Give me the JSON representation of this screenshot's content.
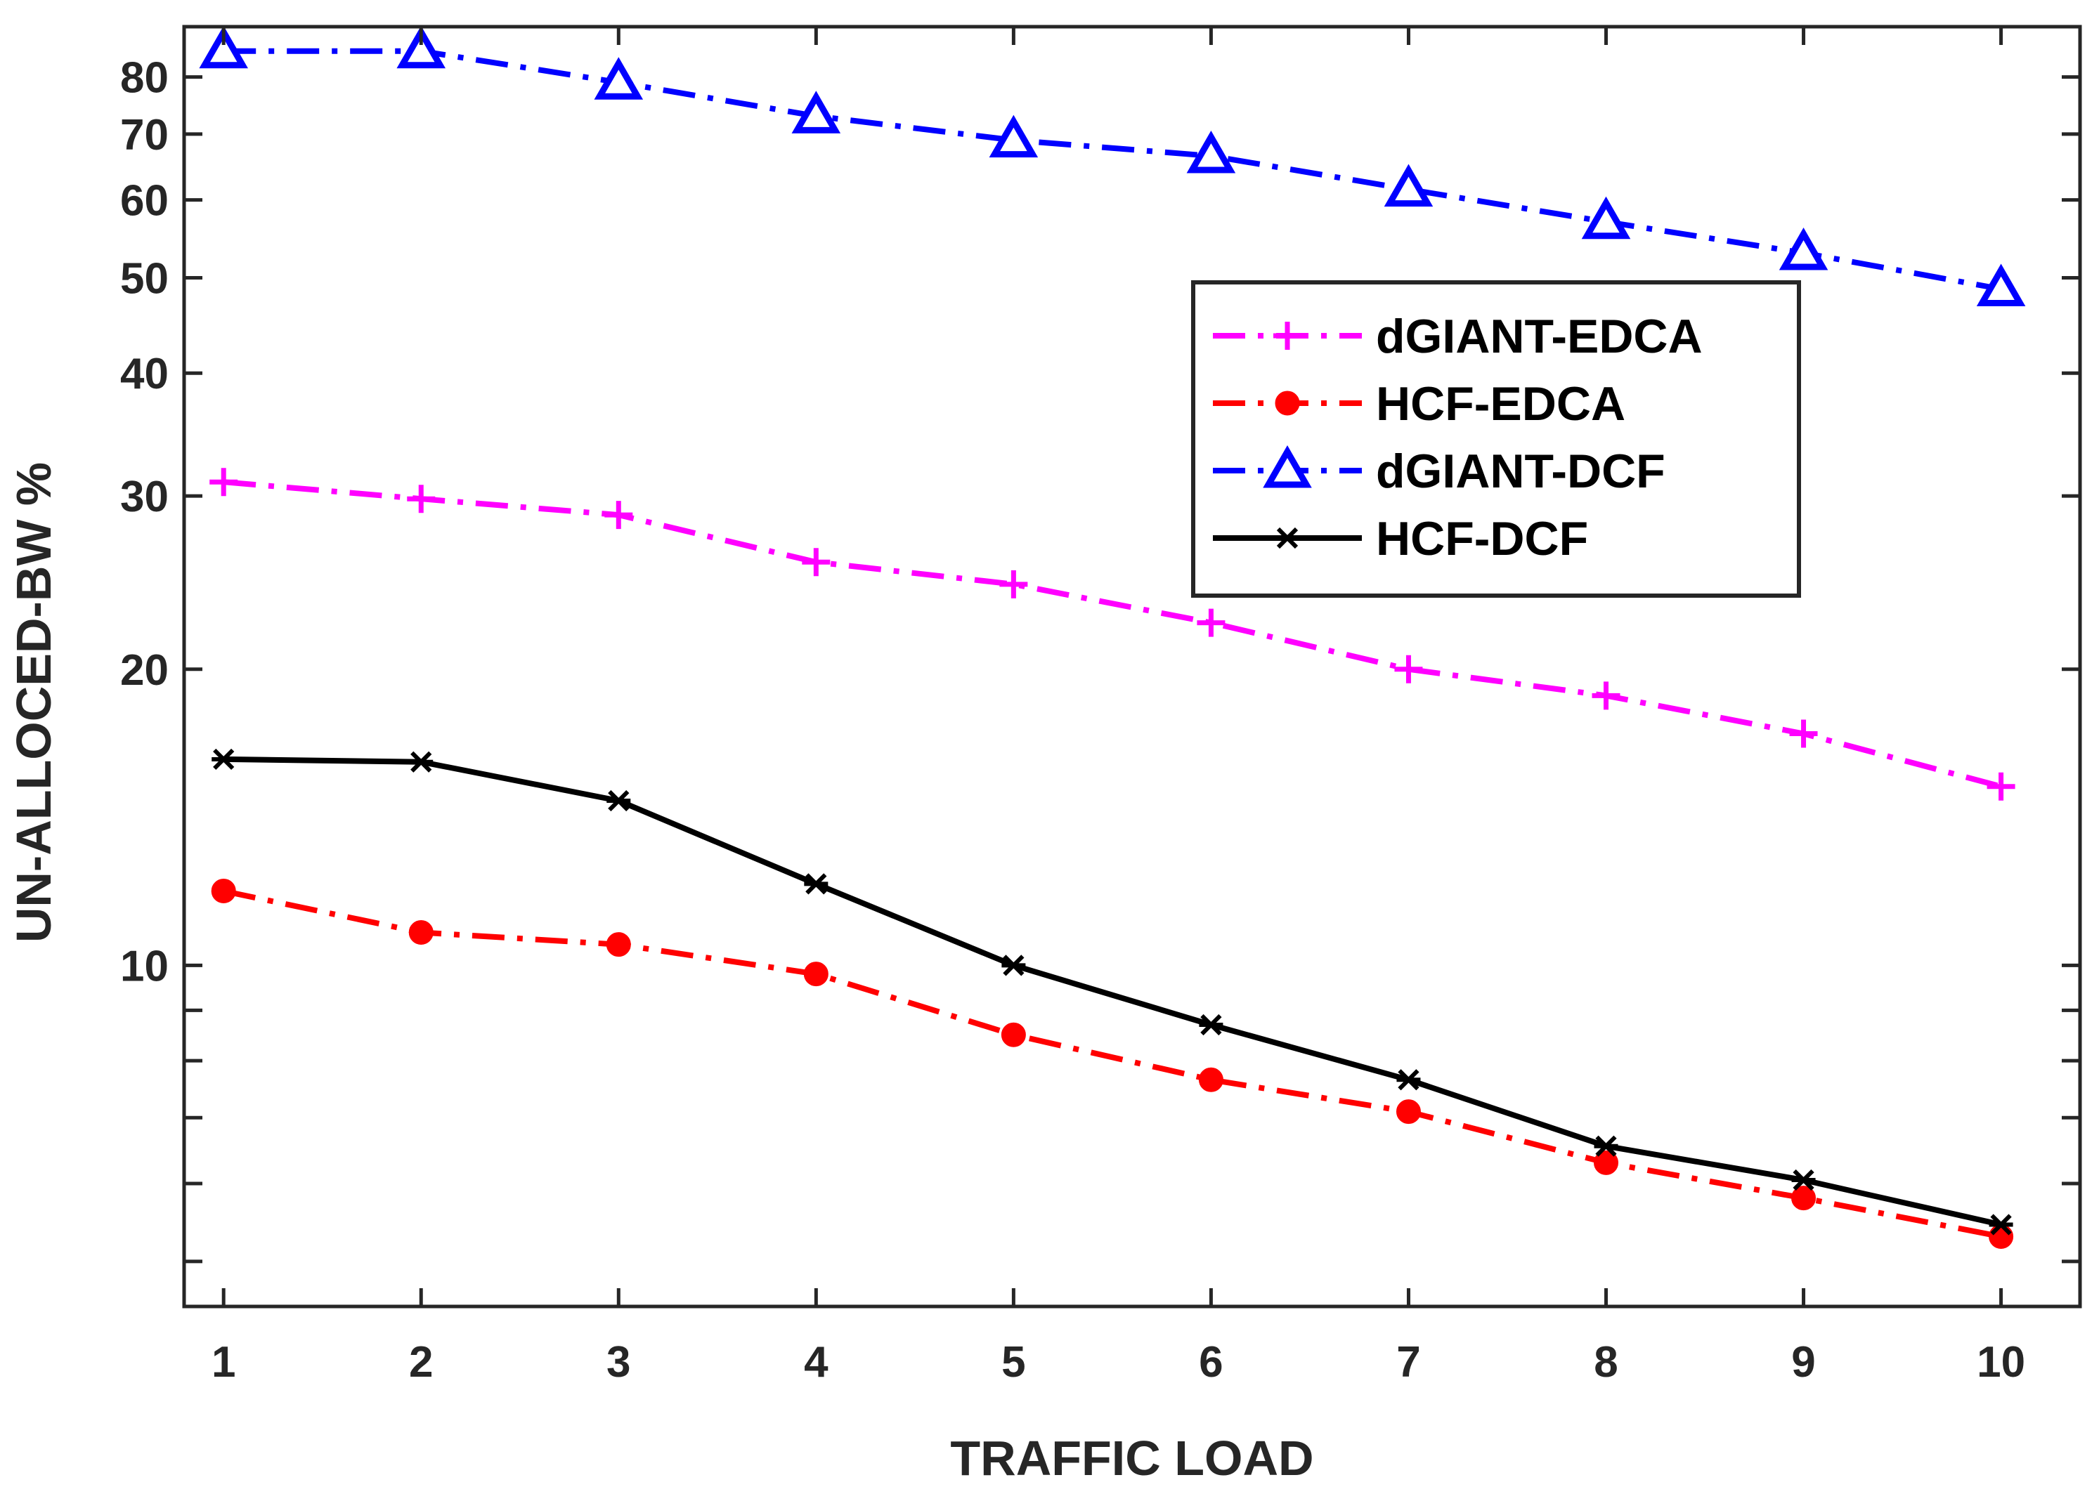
{
  "chart_data": {
    "type": "line",
    "title": "",
    "xlabel": "TRAFFIC LOAD",
    "ylabel": "UN-ALLOCED-BW %",
    "yscale": "log",
    "xlim": [
      0.8,
      10.4
    ],
    "ylim": [
      4.5,
      90
    ],
    "x": [
      1,
      2,
      3,
      4,
      5,
      6,
      7,
      8,
      9,
      10
    ],
    "xticks": [
      "1",
      "2",
      "3",
      "4",
      "5",
      "6",
      "7",
      "8",
      "9",
      "10"
    ],
    "yticks": [
      {
        "value": 5,
        "label": ""
      },
      {
        "value": 6,
        "label": ""
      },
      {
        "value": 7,
        "label": ""
      },
      {
        "value": 8,
        "label": ""
      },
      {
        "value": 9,
        "label": ""
      },
      {
        "value": 10,
        "label": "10"
      },
      {
        "value": 20,
        "label": "20"
      },
      {
        "value": 30,
        "label": "30"
      },
      {
        "value": 40,
        "label": "40"
      },
      {
        "value": 50,
        "label": "50"
      },
      {
        "value": 60,
        "label": "60"
      },
      {
        "value": 70,
        "label": "70"
      },
      {
        "value": 80,
        "label": "80"
      }
    ],
    "grid": false,
    "legend_position": "top-right",
    "series": [
      {
        "name": "dGIANT-EDCA",
        "color": "#ff00ff",
        "marker": "plus",
        "dash": "dashdot",
        "values": [
          31,
          29.8,
          28.7,
          25.7,
          24.4,
          22.3,
          20.0,
          18.8,
          17.2,
          15.2
        ]
      },
      {
        "name": "HCF-EDCA",
        "color": "#ff0000",
        "marker": "circle",
        "dash": "dashdot",
        "values": [
          11.9,
          10.8,
          10.5,
          9.8,
          8.5,
          7.65,
          7.1,
          6.3,
          5.8,
          5.3
        ]
      },
      {
        "name": "dGIANT-DCF",
        "color": "#0000ff",
        "marker": "triangle",
        "dash": "dashdot",
        "values": [
          85,
          85,
          79,
          73,
          69,
          66.5,
          61.5,
          57,
          53,
          48.7
        ]
      },
      {
        "name": "HCF-DCF",
        "color": "#000000",
        "marker": "asterisk",
        "dash": "solid",
        "values": [
          16.2,
          16.1,
          14.7,
          12.1,
          10.0,
          8.7,
          7.65,
          6.55,
          6.05,
          5.45
        ]
      }
    ]
  }
}
